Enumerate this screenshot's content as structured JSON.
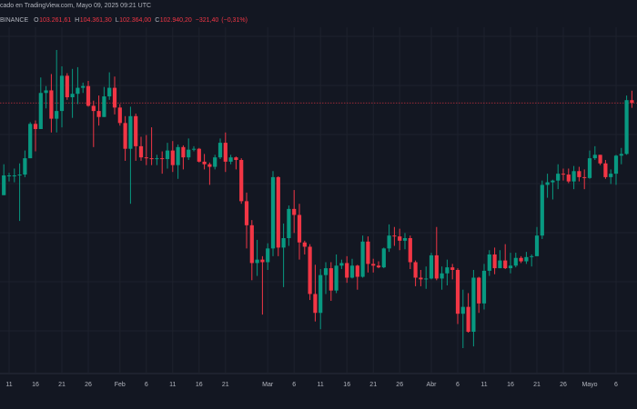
{
  "chart_data": {
    "type": "candlestick",
    "source": "cado en TradingView.com, Mayo 09, 2025 09:21 UTC",
    "exchange": "BINANCE",
    "ohlc_legend": [
      {
        "key": "O",
        "value": 103261.61,
        "label": "103.261,61"
      },
      {
        "key": "H",
        "value": 104361.3,
        "label": "104.361,30"
      },
      {
        "key": "L",
        "value": 102364.0,
        "label": "102.364,00"
      },
      {
        "key": "C",
        "value": 102940.2,
        "label": "102.940,20"
      }
    ],
    "change": {
      "value": -321.4,
      "label": "−321,40"
    },
    "change_pct": {
      "value": -0.31,
      "label": "(−0,31%)"
    },
    "up_color": "#089981",
    "down_color": "#f23645",
    "background": "#131722",
    "grid": true,
    "xticks": [
      {
        "value": 1,
        "label": "11"
      },
      {
        "value": 6,
        "label": "16"
      },
      {
        "value": 11,
        "label": "21"
      },
      {
        "value": 16,
        "label": "26"
      },
      {
        "value": 22,
        "label": "Feb"
      },
      {
        "value": 27,
        "label": "6"
      },
      {
        "value": 32,
        "label": "11"
      },
      {
        "value": 37,
        "label": "16"
      },
      {
        "value": 42,
        "label": "21"
      },
      {
        "value": 50,
        "label": "Mar"
      },
      {
        "value": 55,
        "label": "6"
      },
      {
        "value": 60,
        "label": "11"
      },
      {
        "value": 65,
        "label": "16"
      },
      {
        "value": 70,
        "label": "21"
      },
      {
        "value": 75,
        "label": "26"
      },
      {
        "value": 81,
        "label": "Abr"
      },
      {
        "value": 86,
        "label": "6"
      },
      {
        "value": 91,
        "label": "11"
      },
      {
        "value": 96,
        "label": "16"
      },
      {
        "value": 101,
        "label": "21"
      },
      {
        "value": 106,
        "label": "26"
      },
      {
        "value": 111,
        "label": "Mayo"
      },
      {
        "value": 116,
        "label": "6"
      }
    ],
    "open": [
      92200,
      94500,
      94500,
      94500,
      94600,
      96500,
      100500,
      99900,
      104100,
      104400,
      101100,
      102000,
      106100,
      103600,
      104000,
      104700,
      104900,
      102600,
      102000,
      101300,
      103700,
      104700,
      102400,
      100600,
      97600,
      101400,
      97900,
      96600,
      96500,
      96400,
      96500,
      96400,
      97400,
      95700,
      97800,
      96600,
      97500,
      97600,
      96100,
      95800,
      95500,
      96600,
      98300,
      96100,
      96600,
      96300,
      91500,
      88700,
      84300,
      84700,
      84400,
      86000,
      94300,
      86100,
      87200,
      90600,
      89900,
      86700,
      86200,
      80700,
      78500,
      82900,
      83700,
      81100,
      84000,
      84300,
      82600,
      84000,
      82700,
      86800,
      84200,
      84000,
      83800,
      86000,
      87500,
      87400,
      86900,
      87200,
      84400,
      82600,
      82400,
      82500,
      85200,
      82500,
      83100,
      83800,
      83500,
      78400,
      79200,
      76300,
      82600,
      79600,
      83400,
      85300,
      83700,
      84600,
      83700,
      84000,
      84900,
      84500,
      85000,
      85100,
      87500,
      93400,
      93700,
      93900,
      94700,
      94600,
      93800,
      95000,
      94300,
      94200,
      96500,
      96900,
      95900,
      94300,
      94700,
      96800,
      97000,
      103261.61
    ],
    "high": [
      95800,
      94800,
      95300,
      95900,
      97400,
      100700,
      100900,
      105900,
      104900,
      106300,
      109100,
      107200,
      106400,
      106900,
      107100,
      105300,
      105500,
      103200,
      103800,
      104800,
      106500,
      106000,
      102800,
      101400,
      102500,
      101700,
      99000,
      99200,
      100100,
      96900,
      97300,
      98300,
      98500,
      98100,
      98000,
      98800,
      97900,
      97700,
      97000,
      96000,
      96900,
      98800,
      99500,
      96900,
      96700,
      96500,
      92500,
      89300,
      87000,
      85100,
      86600,
      95000,
      94400,
      88900,
      91000,
      92800,
      91200,
      86900,
      86500,
      84100,
      83600,
      84400,
      84400,
      85300,
      84700,
      85100,
      84800,
      84100,
      87500,
      87400,
      84800,
      84500,
      86100,
      88800,
      88500,
      88300,
      87800,
      87500,
      84600,
      83500,
      83900,
      85500,
      88500,
      83900,
      84700,
      84200,
      83700,
      81200,
      80800,
      83500,
      82700,
      84200,
      85800,
      86100,
      85800,
      86500,
      85500,
      85500,
      85100,
      85600,
      85300,
      88500,
      93900,
      94700,
      94000,
      95800,
      95300,
      95300,
      95600,
      95500,
      95200,
      97400,
      97900,
      96900,
      96300,
      95200,
      96900,
      97700,
      103800,
      104361.3
    ],
    "low": [
      92200,
      93800,
      93700,
      89200,
      94300,
      96500,
      97300,
      99900,
      102300,
      99500,
      99500,
      100100,
      103300,
      101200,
      102800,
      104100,
      102500,
      97800,
      100300,
      101300,
      103300,
      101600,
      100300,
      96200,
      91200,
      96200,
      96200,
      95700,
      95700,
      95700,
      94700,
      95300,
      94900,
      94100,
      95200,
      96300,
      97300,
      96000,
      95200,
      93400,
      95200,
      96400,
      94900,
      95800,
      95200,
      91200,
      86000,
      82300,
      82800,
      78300,
      83500,
      85100,
      85100,
      81500,
      86300,
      87800,
      84700,
      85300,
      80000,
      77500,
      76600,
      80700,
      79900,
      80800,
      83600,
      82000,
      82500,
      81200,
      82600,
      83200,
      83200,
      83700,
      83700,
      85600,
      86300,
      85800,
      85900,
      83600,
      81600,
      81600,
      81300,
      82400,
      82300,
      81200,
      81700,
      82400,
      77200,
      74400,
      76200,
      74600,
      78500,
      78900,
      82800,
      83000,
      83700,
      83600,
      83100,
      83800,
      84300,
      84200,
      83900,
      85100,
      87100,
      91900,
      91700,
      92900,
      93900,
      93600,
      92900,
      93800,
      92900,
      94100,
      96300,
      95700,
      94100,
      93500,
      93400,
      95800,
      96900,
      102364.0
    ],
    "close": [
      94500,
      94500,
      94500,
      94600,
      96500,
      100500,
      99900,
      104100,
      104400,
      101100,
      102000,
      106100,
      103600,
      104000,
      104700,
      104900,
      102600,
      102000,
      101300,
      103700,
      104700,
      102400,
      100600,
      97600,
      101400,
      97900,
      96600,
      96500,
      96400,
      96500,
      96400,
      97400,
      95700,
      97800,
      96600,
      97500,
      97600,
      96100,
      95800,
      95500,
      96600,
      98300,
      96100,
      96600,
      96300,
      91500,
      88700,
      84300,
      84700,
      84400,
      86000,
      94300,
      86100,
      87200,
      90600,
      89900,
      86700,
      86200,
      80700,
      78500,
      82900,
      83700,
      81100,
      84000,
      84300,
      82600,
      84000,
      82700,
      86800,
      84200,
      84000,
      83800,
      86000,
      87500,
      87400,
      86900,
      87200,
      84400,
      82600,
      82400,
      82500,
      85200,
      82500,
      83100,
      83800,
      83500,
      78400,
      79200,
      76300,
      82600,
      79600,
      83400,
      85300,
      83700,
      84600,
      83700,
      84000,
      84900,
      84500,
      85000,
      85100,
      87500,
      93400,
      93700,
      93900,
      94700,
      94600,
      93800,
      95000,
      94300,
      94200,
      96500,
      96900,
      95900,
      94300,
      94700,
      96800,
      97000,
      103261.61,
      102940.2
    ]
  }
}
